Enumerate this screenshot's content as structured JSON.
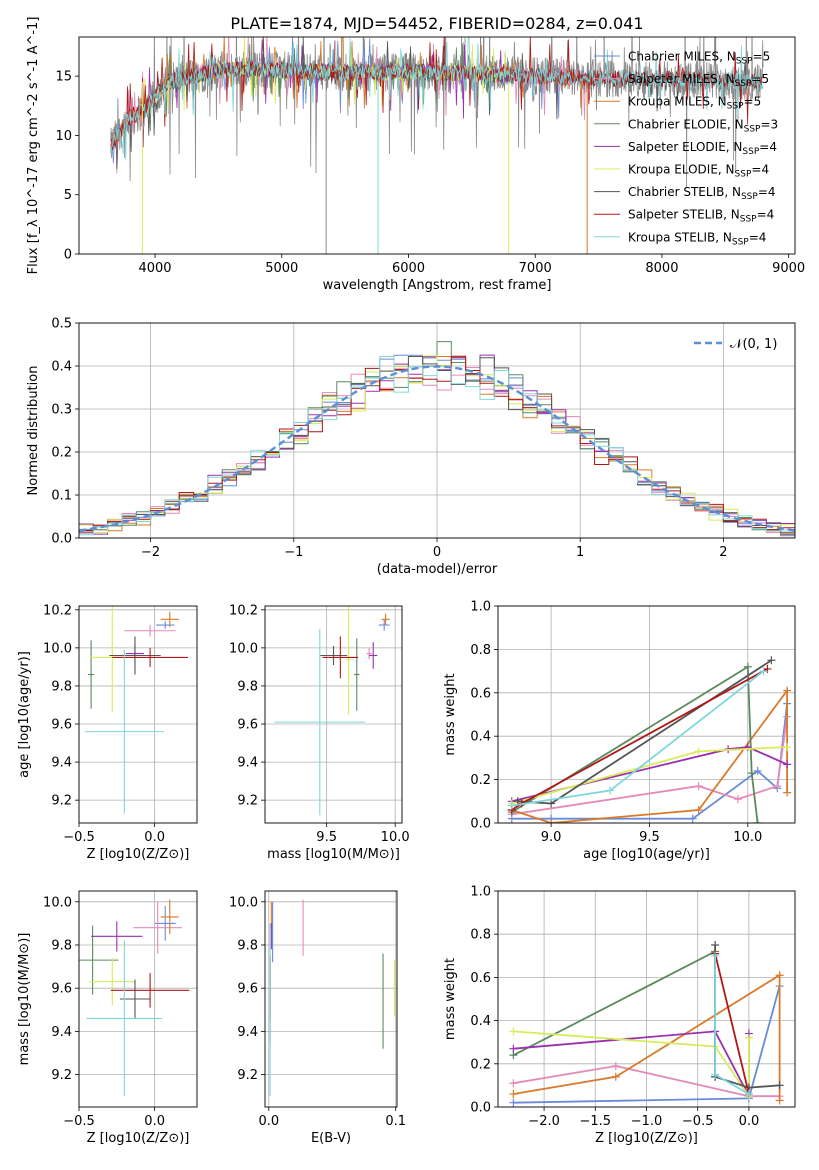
{
  "figure": {
    "title": "PLATE=1874, MJD=54452, FIBERID=0284, z=0.041"
  },
  "colors": {
    "Chabrier MILES": "#6a8bd8",
    "Salpeter MILES": "#e48aba",
    "Kroupa MILES": "#d9792a",
    "Chabrier ELODIE": "#5a8a5e",
    "Salpeter ELODIE": "#9a30b0",
    "Kroupa ELODIE": "#d8ec5a",
    "Chabrier STELIB": "#555555",
    "Salpeter STELIB": "#b01818",
    "Kroupa STELIB": "#7fd6dc",
    "grey_data": "#888888",
    "normal_curve": "#5b8fd6",
    "grid": "#b0b0b0"
  },
  "chart_data": [
    {
      "panel": "spectrum",
      "type": "line",
      "xlabel": "wavelength [Angstrom, rest frame]",
      "ylabel": "Flux [f_λ 10^-17 erg cm^-2 s^-1 A^-1]",
      "xlim": [
        3400,
        9050
      ],
      "ylim": [
        0,
        18.3
      ],
      "xticks": [
        4000,
        5000,
        6000,
        7000,
        8000,
        9000
      ],
      "yticks": [
        0,
        5,
        10,
        15
      ],
      "grid": false,
      "legend_position": "right",
      "legend": [
        {
          "name": "Chabrier MILES",
          "nssp": "5"
        },
        {
          "name": "Salpeter MILES",
          "nssp": "5"
        },
        {
          "name": "Kroupa MILES",
          "nssp": "5"
        },
        {
          "name": "Chabrier ELODIE",
          "nssp": "3"
        },
        {
          "name": "Salpeter ELODIE",
          "nssp": "4"
        },
        {
          "name": "Kroupa ELODIE",
          "nssp": "4"
        },
        {
          "name": "Chabrier STELIB",
          "nssp": "4"
        },
        {
          "name": "Salpeter STELIB",
          "nssp": "4"
        },
        {
          "name": "Kroupa STELIB",
          "nssp": "4"
        }
      ],
      "data_envelope": {
        "x": [
          3650,
          3700,
          3800,
          3900,
          4000,
          4100,
          4200,
          4300,
          4500,
          4700,
          5000,
          5500,
          6000,
          6500,
          7000,
          7500,
          8000,
          8500,
          8800
        ],
        "y": [
          9.0,
          10.0,
          11.5,
          12.0,
          13.2,
          14.5,
          14.8,
          15.0,
          15.5,
          15.6,
          15.5,
          15.3,
          15.4,
          15.2,
          15.0,
          14.8,
          14.8,
          14.6,
          14.5
        ]
      },
      "model_range": {
        "Chabrier MILES": [
          3650,
          7410
        ],
        "Salpeter MILES": [
          3650,
          7410
        ],
        "Kroupa MILES": [
          3650,
          7410
        ],
        "Chabrier ELODIE": [
          3900,
          6800
        ],
        "Salpeter ELODIE": [
          3900,
          6800
        ],
        "Kroupa ELODIE": [
          3900,
          6800
        ],
        "Chabrier STELIB": [
          3650,
          8800
        ],
        "Salpeter STELIB": [
          3650,
          8800
        ],
        "Kroupa STELIB": [
          3650,
          8800
        ]
      },
      "dropouts": [
        {
          "x": 3900,
          "to": 0
        },
        {
          "x": 5350,
          "to": 0
        },
        {
          "x": 5760,
          "to": 0
        },
        {
          "x": 6790,
          "to": 0
        },
        {
          "x": 7410,
          "to": 0
        }
      ]
    },
    {
      "panel": "residuals",
      "type": "histogram",
      "xlabel": "(data-model)/error",
      "ylabel": "Normed distribution",
      "xlim": [
        -2.5,
        2.5
      ],
      "ylim": [
        0,
        0.5
      ],
      "xticks": [
        -2,
        -1,
        0,
        1,
        2
      ],
      "yticks": [
        0.0,
        0.1,
        0.2,
        0.3,
        0.4,
        0.5
      ],
      "grid": true,
      "bin_width": 0.1,
      "legend_position": "top-right",
      "legend": [
        {
          "name": "N(0,1)",
          "style": "dashed"
        }
      ],
      "normal_curve": {
        "mean": 0,
        "sigma": 1
      }
    },
    {
      "panel": "age-vs-Z",
      "type": "scatter-errorbars",
      "xlabel": "Z [log10(Z/Z⊙)]",
      "ylabel": "age [log10(age/yr)]",
      "xlim": [
        -0.5,
        0.28
      ],
      "ylim": [
        9.08,
        10.22
      ],
      "xticks": [
        -0.5,
        0.0
      ],
      "yticks": [
        9.2,
        9.4,
        9.6,
        9.8,
        10.0,
        10.2
      ],
      "grid": true,
      "points": [
        {
          "series": "Chabrier MILES",
          "x": 0.07,
          "y": 10.12,
          "xerr": 0.06,
          "yerr": 0.02
        },
        {
          "series": "Salpeter MILES",
          "x": -0.03,
          "y": 10.09,
          "xerr": 0.17,
          "yerr": 0.03
        },
        {
          "series": "Kroupa MILES",
          "x": 0.1,
          "y": 10.15,
          "xerr": 0.06,
          "yerr": 0.04
        },
        {
          "series": "Chabrier ELODIE",
          "x": -0.42,
          "y": 9.86,
          "xerr": 0.02,
          "yerr": 0.18
        },
        {
          "series": "Salpeter ELODIE",
          "x": -0.13,
          "y": 9.97,
          "xerr": 0.06,
          "yerr": 0.05
        },
        {
          "series": "Kroupa ELODIE",
          "x": -0.28,
          "y": 9.95,
          "xerr": 0.15,
          "yerr": 0.29
        },
        {
          "series": "Chabrier STELIB",
          "x": -0.13,
          "y": 9.96,
          "xerr": 0.17,
          "yerr": 0.1
        },
        {
          "series": "Salpeter STELIB",
          "x": -0.03,
          "y": 9.95,
          "xerr": 0.25,
          "yerr": 0.05
        },
        {
          "series": "Kroupa STELIB",
          "x": -0.2,
          "y": 9.56,
          "xerr": 0.26,
          "yerr": 0.43
        }
      ]
    },
    {
      "panel": "age-vs-mass",
      "type": "scatter-errorbars",
      "xlabel": "mass [log10(M/M⊙)]",
      "xlim": [
        9.05,
        10.05
      ],
      "ylim": [
        9.08,
        10.22
      ],
      "xticks": [
        9.5,
        10.0
      ],
      "yticks": [
        9.2,
        9.4,
        9.6,
        9.8,
        10.0,
        10.2
      ],
      "grid": true,
      "points": [
        {
          "series": "Chabrier MILES",
          "x": 9.92,
          "y": 10.12,
          "xerr": 0.04,
          "yerr": 0.03
        },
        {
          "series": "Salpeter MILES",
          "x": 9.81,
          "y": 9.97,
          "xerr": 0.02,
          "yerr": 0.03
        },
        {
          "series": "Kroupa MILES",
          "x": 9.93,
          "y": 10.15,
          "xerr": 0.03,
          "yerr": 0.03
        },
        {
          "series": "Chabrier ELODIE",
          "x": 9.72,
          "y": 9.86,
          "xerr": 0.02,
          "yerr": 0.19
        },
        {
          "series": "Salpeter ELODIE",
          "x": 9.84,
          "y": 9.96,
          "xerr": 0.03,
          "yerr": 0.07
        },
        {
          "series": "Kroupa ELODIE",
          "x": 9.66,
          "y": 9.94,
          "xerr": 0.02,
          "yerr": 0.29
        },
        {
          "series": "Chabrier STELIB",
          "x": 9.55,
          "y": 9.96,
          "xerr": 0.1,
          "yerr": 0.05
        },
        {
          "series": "Salpeter STELIB",
          "x": 9.6,
          "y": 9.95,
          "xerr": 0.13,
          "yerr": 0.11
        },
        {
          "series": "Kroupa STELIB",
          "x": 9.45,
          "y": 9.61,
          "xerr": 0.33,
          "yerr": 0.49
        }
      ]
    },
    {
      "panel": "weight-vs-age",
      "type": "line",
      "xlabel": "age [log10(age/yr)]",
      "ylabel": "mass weight",
      "xlim": [
        8.73,
        10.24
      ],
      "ylim": [
        0,
        1
      ],
      "xticks": [
        9.0,
        9.5,
        10.0
      ],
      "yticks": [
        0.0,
        0.2,
        0.4,
        0.6,
        0.8,
        1.0
      ],
      "grid": true,
      "series": [
        {
          "name": "Chabrier MILES",
          "x": [
            8.8,
            9.0,
            9.72,
            10.05,
            10.15,
            10.2
          ],
          "y": [
            0.02,
            0.02,
            0.02,
            0.24,
            0.16,
            0.55
          ]
        },
        {
          "name": "Salpeter MILES",
          "x": [
            8.8,
            9.75,
            9.95,
            10.15,
            10.2
          ],
          "y": [
            0.04,
            0.17,
            0.11,
            0.17,
            0.49
          ]
        },
        {
          "name": "Kroupa MILES",
          "x": [
            8.8,
            9.0,
            9.75,
            10.2,
            10.2
          ],
          "y": [
            0.06,
            0.0,
            0.06,
            0.61,
            0.14
          ]
        },
        {
          "name": "Chabrier ELODIE",
          "x": [
            8.8,
            10.0,
            10.02,
            10.05
          ],
          "y": [
            0.05,
            0.72,
            0.23,
            0.0
          ]
        },
        {
          "name": "Salpeter ELODIE",
          "x": [
            8.8,
            9.9,
            10.0,
            10.2
          ],
          "y": [
            0.1,
            0.34,
            0.35,
            0.27
          ]
        },
        {
          "name": "Kroupa ELODIE",
          "x": [
            8.8,
            9.75,
            10.2
          ],
          "y": [
            0.09,
            0.33,
            0.35
          ]
        },
        {
          "name": "Chabrier STELIB",
          "x": [
            8.83,
            9.0,
            10.12
          ],
          "y": [
            0.1,
            0.09,
            0.75
          ]
        },
        {
          "name": "Salpeter STELIB",
          "x": [
            8.8,
            8.85,
            10.1
          ],
          "y": [
            0.06,
            0.09,
            0.71
          ]
        },
        {
          "name": "Kroupa STELIB",
          "x": [
            8.8,
            9.3,
            10.08
          ],
          "y": [
            0.08,
            0.15,
            0.7
          ]
        }
      ]
    },
    {
      "panel": "mass-vs-Z",
      "type": "scatter-errorbars",
      "xlabel": "Z [log10(Z/Z⊙)]",
      "ylabel": "mass [log10(M/M⊙)]",
      "xlim": [
        -0.5,
        0.28
      ],
      "ylim": [
        9.05,
        10.05
      ],
      "xticks": [
        -0.5,
        0.0
      ],
      "yticks": [
        9.2,
        9.4,
        9.6,
        9.8,
        10.0
      ],
      "grid": true,
      "points": [
        {
          "series": "Chabrier MILES",
          "x": 0.07,
          "y": 9.9,
          "xerr": 0.07,
          "yerr": 0.08
        },
        {
          "series": "Salpeter MILES",
          "x": 0.02,
          "y": 9.88,
          "xerr": 0.16,
          "yerr": 0.12
        },
        {
          "series": "Kroupa MILES",
          "x": 0.1,
          "y": 9.93,
          "xerr": 0.06,
          "yerr": 0.08
        },
        {
          "series": "Chabrier ELODIE",
          "x": -0.41,
          "y": 9.73,
          "xerr": 0.17,
          "yerr": 0.16
        },
        {
          "series": "Salpeter ELODIE",
          "x": -0.25,
          "y": 9.84,
          "xerr": 0.17,
          "yerr": 0.07
        },
        {
          "series": "Kroupa ELODIE",
          "x": -0.28,
          "y": 9.63,
          "xerr": 0.15,
          "yerr": 0.11
        },
        {
          "series": "Chabrier STELIB",
          "x": -0.13,
          "y": 9.55,
          "xerr": 0.1,
          "yerr": 0.09
        },
        {
          "series": "Salpeter STELIB",
          "x": -0.03,
          "y": 9.59,
          "xerr": 0.26,
          "yerr": 0.08
        },
        {
          "series": "Kroupa STELIB",
          "x": -0.2,
          "y": 9.46,
          "xerr": 0.25,
          "yerr": 0.36
        }
      ]
    },
    {
      "panel": "mass-vs-ebv",
      "type": "scatter-errorbars",
      "xlabel": "E(B-V)",
      "xlim": [
        -0.003,
        0.101
      ],
      "ylim": [
        9.05,
        10.05
      ],
      "xticks": [
        0.0,
        0.1
      ],
      "yticks": [
        9.2,
        9.4,
        9.6,
        9.8,
        10.0
      ],
      "grid": true,
      "points": [
        {
          "series": "Chabrier MILES",
          "x": 0.003,
          "y": 9.86,
          "xerr": 0.0,
          "yerr": 0.14
        },
        {
          "series": "Salpeter MILES",
          "x": 0.027,
          "y": 9.88,
          "xerr": 0.0,
          "yerr": 0.13
        },
        {
          "series": "Kroupa MILES",
          "x": 0.002,
          "y": 9.94,
          "xerr": 0.0,
          "yerr": 0.06
        },
        {
          "series": "Chabrier ELODIE",
          "x": 0.09,
          "y": 9.54,
          "xerr": 0.0,
          "yerr": 0.22
        },
        {
          "series": "Salpeter ELODIE",
          "x": 0.002,
          "y": 9.84,
          "xerr": 0.0,
          "yerr": 0.06
        },
        {
          "series": "Kroupa ELODIE",
          "x": 0.099,
          "y": 9.6,
          "xerr": 0.0,
          "yerr": 0.13
        },
        {
          "series": "Chabrier STELIB",
          "x": 0.001,
          "y": 9.55,
          "xerr": 0.0,
          "yerr": 0.2
        },
        {
          "series": "Salpeter STELIB",
          "x": 0.001,
          "y": 9.6,
          "xerr": 0.0,
          "yerr": 0.15
        },
        {
          "series": "Kroupa STELIB",
          "x": 0.001,
          "y": 9.5,
          "xerr": 0.0,
          "yerr": 0.4
        }
      ]
    },
    {
      "panel": "weight-vs-Z",
      "type": "line",
      "xlabel": "Z [log10(Z/Z⊙)]",
      "ylabel": "mass weight",
      "xlim": [
        -2.45,
        0.45
      ],
      "ylim": [
        0,
        1
      ],
      "xticks": [
        -2.0,
        -1.5,
        -1.0,
        -0.5,
        0.0
      ],
      "yticks": [
        0.0,
        0.2,
        0.4,
        0.6,
        0.8,
        1.0
      ],
      "grid": true,
      "series": [
        {
          "name": "Chabrier MILES",
          "x": [
            -2.3,
            0.0,
            0.3
          ],
          "y": [
            0.02,
            0.04,
            0.56
          ]
        },
        {
          "name": "Salpeter MILES",
          "x": [
            -2.3,
            -1.3,
            0.0,
            0.3
          ],
          "y": [
            0.11,
            0.19,
            0.05,
            0.05
          ]
        },
        {
          "name": "Kroupa MILES",
          "x": [
            -2.3,
            -1.3,
            0.3,
            0.3
          ],
          "y": [
            0.06,
            0.14,
            0.61,
            0.03
          ]
        },
        {
          "name": "Chabrier ELODIE",
          "x": [
            -2.3,
            -0.33,
            -0.33
          ],
          "y": [
            0.24,
            0.72,
            0.14
          ]
        },
        {
          "name": "Salpeter ELODIE",
          "x": [
            -2.3,
            -0.33,
            0.0,
            0.0
          ],
          "y": [
            0.27,
            0.35,
            0.05,
            0.34
          ]
        },
        {
          "name": "Kroupa ELODIE",
          "x": [
            -2.3,
            -0.33,
            0.0,
            0.0
          ],
          "y": [
            0.35,
            0.28,
            0.05,
            0.32
          ]
        },
        {
          "name": "Chabrier STELIB",
          "x": [
            -0.33,
            -0.33,
            0.0,
            0.3
          ],
          "y": [
            0.75,
            0.14,
            0.09,
            0.1
          ]
        },
        {
          "name": "Salpeter STELIB",
          "x": [
            -0.33,
            0.0
          ],
          "y": [
            0.71,
            0.06
          ]
        },
        {
          "name": "Kroupa STELIB",
          "x": [
            -0.33,
            -0.33,
            0.0
          ],
          "y": [
            0.7,
            0.15,
            0.06
          ]
        }
      ]
    }
  ]
}
